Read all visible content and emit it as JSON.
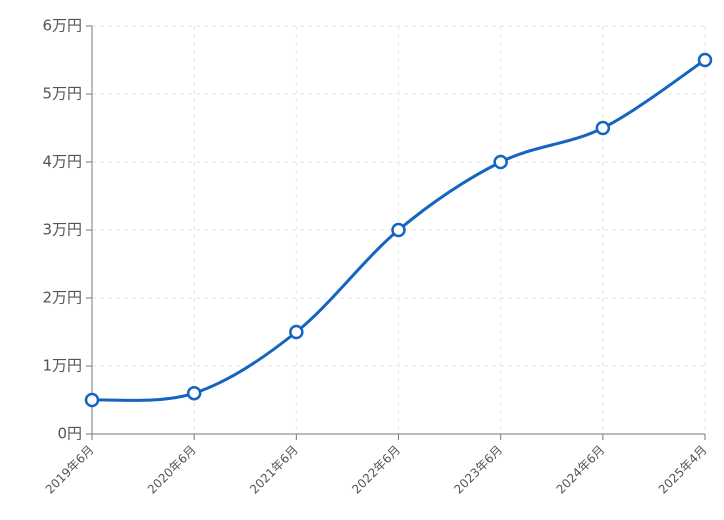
{
  "chart_data": {
    "type": "line",
    "categories": [
      "2019年6月",
      "2020年6月",
      "2021年6月",
      "2022年6月",
      "2023年6月",
      "2024年6月",
      "2025年4月"
    ],
    "series": [
      {
        "color": "#1565c0",
        "values": [
          5000,
          6000,
          15000,
          30000,
          40000,
          45000,
          55000
        ]
      }
    ],
    "ylim": [
      0,
      60000
    ],
    "yticks": [
      {
        "value": 0,
        "label": "0円"
      },
      {
        "value": 10000,
        "label": "1万円"
      },
      {
        "value": 20000,
        "label": "2万円"
      },
      {
        "value": 30000,
        "label": "3万円"
      },
      {
        "value": 40000,
        "label": "4万円"
      },
      {
        "value": 50000,
        "label": "5万円"
      },
      {
        "value": 60000,
        "label": "6万円"
      }
    ],
    "grid": true
  }
}
